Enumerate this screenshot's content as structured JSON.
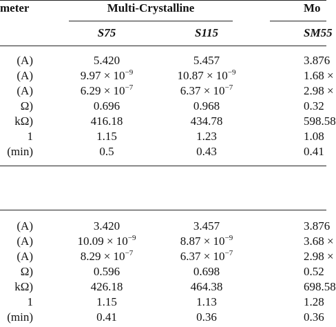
{
  "header": {
    "param": "meter",
    "group1": "Multi-Crystalline",
    "group2": "Mo"
  },
  "subheader": [
    "S75",
    "S115",
    "SM55"
  ],
  "sections": [
    {
      "rows": [
        {
          "label": "(A)",
          "cells": [
            "5.420",
            "5.457",
            "3.876"
          ]
        },
        {
          "label": "(A)",
          "cells": [
            {
              "base": "9.97 × 10",
              "exp": "−9"
            },
            {
              "base": "10.87 × 10",
              "exp": "−9"
            },
            "1.68 ×"
          ]
        },
        {
          "label": "(A)",
          "cells": [
            {
              "base": "6.29 × 10",
              "exp": "−7"
            },
            {
              "base": "6.37 × 10",
              "exp": "−7"
            },
            "2.98 ×"
          ]
        },
        {
          "label": "Ω)",
          "cells": [
            "0.696",
            "0.968",
            "0.32"
          ]
        },
        {
          "label": "kΩ)",
          "cells": [
            "416.18",
            "434.78",
            "598.58"
          ]
        },
        {
          "label": "1",
          "cells": [
            "1.15",
            "1.23",
            "1.08"
          ]
        },
        {
          "label": "(min)",
          "cells": [
            "0.5",
            "0.43",
            "0.41"
          ]
        }
      ]
    },
    {
      "rows": [
        {
          "label": "(A)",
          "cells": [
            "3.420",
            "3.457",
            "3.876"
          ]
        },
        {
          "label": "(A)",
          "cells": [
            {
              "base": "10.09 × 10",
              "exp": "−9"
            },
            {
              "base": "8.87 × 10",
              "exp": "−9"
            },
            "3.68 ×"
          ]
        },
        {
          "label": "(A)",
          "cells": [
            {
              "base": "8.29 × 10",
              "exp": "−7"
            },
            {
              "base": "6.37 × 10",
              "exp": "−7"
            },
            "2.98 ×"
          ]
        },
        {
          "label": "Ω)",
          "cells": [
            "0.596",
            "0.698",
            "0.52"
          ]
        },
        {
          "label": "kΩ)",
          "cells": [
            "426.18",
            "464.38",
            "698.58"
          ]
        },
        {
          "label": "1",
          "cells": [
            "1.15",
            "1.13",
            "1.28"
          ]
        },
        {
          "label": "(min)",
          "cells": [
            "0.41",
            "0.36",
            "0.36"
          ]
        }
      ]
    }
  ]
}
